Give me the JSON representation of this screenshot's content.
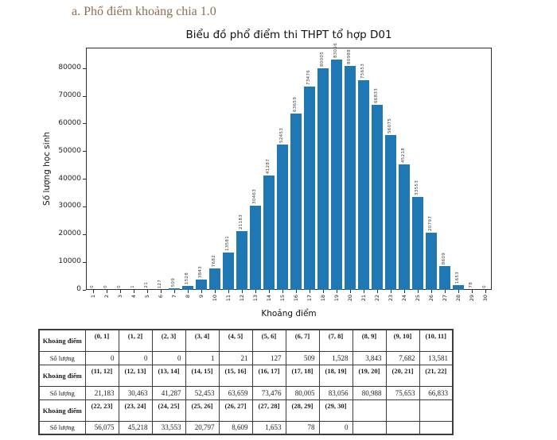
{
  "heading": "a. Phổ điểm khoảng chia 1.0",
  "chart_data": {
    "type": "bar",
    "title": "Biểu đồ phổ điểm thi THPT tổ hợp D01",
    "xlabel": "Khoảng điểm",
    "ylabel": "Số lượng học sinh",
    "categories": [
      "1",
      "2",
      "3",
      "4",
      "5",
      "6",
      "7",
      "8",
      "9",
      "10",
      "11",
      "12",
      "13",
      "14",
      "15",
      "16",
      "17",
      "18",
      "19",
      "20",
      "21",
      "22",
      "23",
      "24",
      "25",
      "26",
      "27",
      "28",
      "29",
      "30"
    ],
    "values": [
      0,
      0,
      0,
      1,
      21,
      127,
      509,
      1528,
      3843,
      7682,
      13581,
      21183,
      30463,
      41287,
      52453,
      63659,
      73476,
      80005,
      83056,
      80988,
      75653,
      66833,
      56075,
      45218,
      33553,
      20797,
      8609,
      1653,
      78,
      0
    ],
    "bar_labels": [
      "0",
      "0",
      "0",
      "1",
      "21",
      "127",
      "509",
      "1528",
      "3843",
      "7682",
      "13581",
      "21183",
      "30463",
      "41287",
      "52453",
      "63659",
      "73476",
      "80005",
      "83056",
      "80988",
      "75653",
      "66833",
      "56075",
      "45218",
      "33553",
      "20797",
      "8609",
      "1653",
      "78",
      "0"
    ],
    "ylim": [
      0,
      87500
    ],
    "yticks": [
      0,
      10000,
      20000,
      30000,
      40000,
      50000,
      60000,
      70000,
      80000
    ],
    "bar_color": "#1f77b4",
    "grid": false,
    "legend": null,
    "bar_label_rotation": 90,
    "xtick_rotation": 90
  },
  "table": {
    "interval_label": "Khoảng điểm",
    "count_label": "Số lượng",
    "rows": [
      {
        "type": "intervals",
        "cells": [
          "(0, 1]",
          "(1, 2]",
          "(2, 3]",
          "(3, 4]",
          "(4, 5]",
          "(5, 6]",
          "(6, 7]",
          "(7, 8]",
          "(8, 9]",
          "(9, 10]",
          "(10, 11]"
        ]
      },
      {
        "type": "counts",
        "cells": [
          "0",
          "0",
          "0",
          "1",
          "21",
          "127",
          "509",
          "1,528",
          "3,843",
          "7,682",
          "13,581"
        ]
      },
      {
        "type": "intervals",
        "cells": [
          "(11, 12]",
          "(12, 13]",
          "(13, 14]",
          "(14, 15]",
          "(15, 16]",
          "(16, 17]",
          "(17, 18]",
          "(18, 19]",
          "(19, 20]",
          "(20, 21]",
          "(21, 22]"
        ]
      },
      {
        "type": "counts",
        "cells": [
          "21,183",
          "30,463",
          "41,287",
          "52,453",
          "63,659",
          "73,476",
          "80,005",
          "83,056",
          "80,988",
          "75,653",
          "66,833"
        ]
      },
      {
        "type": "intervals",
        "cells": [
          "(22, 23]",
          "(23, 24]",
          "(24, 25]",
          "(25, 26]",
          "(26, 27]",
          "(27, 28]",
          "(28, 29]",
          "(29, 30]",
          "",
          "",
          ""
        ]
      },
      {
        "type": "counts",
        "cells": [
          "56,075",
          "45,218",
          "33,553",
          "20,797",
          "8,609",
          "1,653",
          "78",
          "0",
          "",
          "",
          ""
        ]
      }
    ]
  },
  "colors": {
    "bar": "#1f77b4",
    "heading_text": "#8c6f50",
    "axis": "#2e2e2e",
    "table_border": "#3c3c3c"
  }
}
